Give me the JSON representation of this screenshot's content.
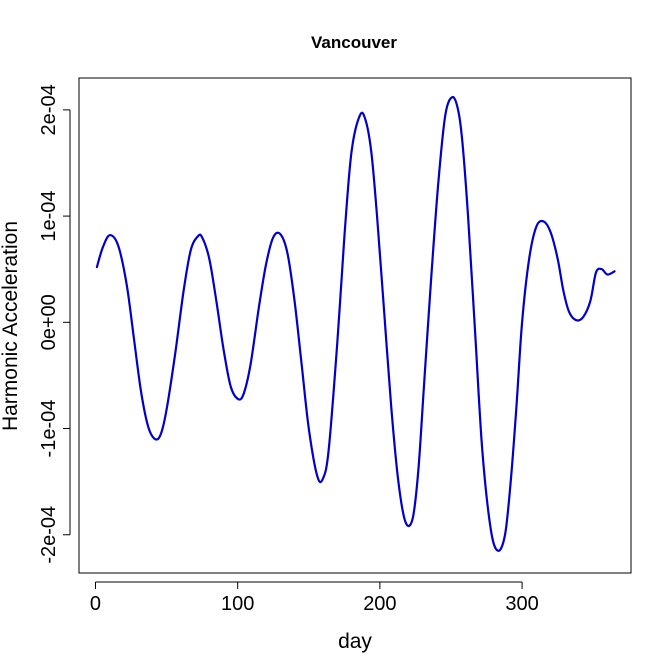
{
  "chart_data": {
    "type": "line",
    "title": "Vancouver",
    "xlabel": "day",
    "ylabel": "Harmonic Acceleration",
    "xlim": [
      -11.6,
      376.6
    ],
    "ylim": [
      -0.000236,
      0.00023
    ],
    "x_ticks": [
      {
        "value": 0,
        "label": "0"
      },
      {
        "value": 100,
        "label": "100"
      },
      {
        "value": 200,
        "label": "200"
      },
      {
        "value": 300,
        "label": "300"
      }
    ],
    "y_ticks": [
      {
        "value": -0.0002,
        "label": "-2e-04"
      },
      {
        "value": -0.0001,
        "label": "-1e-04"
      },
      {
        "value": 0,
        "label": "0e+00"
      },
      {
        "value": 0.0001,
        "label": "1e-04"
      },
      {
        "value": 0.0002,
        "label": "2e-04"
      }
    ],
    "grid": false,
    "line_color": "#0000cc",
    "series": [
      {
        "x": [
          1,
          5,
          10,
          16,
          22,
          27,
          32,
          37,
          42,
          46,
          50,
          56,
          62,
          67,
          72,
          75,
          80,
          85,
          90,
          95,
          100,
          104,
          109,
          115,
          120,
          125,
          130,
          135,
          140,
          145,
          150,
          156,
          160,
          164,
          170,
          175,
          180,
          186,
          190,
          194,
          198,
          203,
          208,
          213,
          218,
          223,
          227,
          231,
          236,
          241,
          246,
          251,
          255,
          258,
          262,
          267,
          272,
          278,
          283,
          288,
          292,
          296,
          300,
          305,
          310,
          315,
          320,
          325,
          329,
          333,
          338,
          343,
          348,
          352,
          356,
          360,
          365
        ],
        "y": [
          5.2e-05,
          7e-05,
          8.2e-05,
          7.2e-05,
          3.5e-05,
          -1.5e-05,
          -6.5e-05,
          -9.8e-05,
          -0.00011,
          -0.000105,
          -8.2e-05,
          -3e-05,
          3e-05,
          6.8e-05,
          8.1e-05,
          8e-05,
          6e-05,
          2e-05,
          -2.5e-05,
          -6e-05,
          -7.2e-05,
          -6.8e-05,
          -4e-05,
          1.5e-05,
          5.5e-05,
          8e-05,
          8.3e-05,
          6.5e-05,
          2e-05,
          -4e-05,
          -0.0001,
          -0.000145,
          -0.000147,
          -0.00012,
          -2e-05,
          8e-05,
          0.00016,
          0.000195,
          0.00019,
          0.00016,
          0.0001,
          1e-05,
          -8e-05,
          -0.00015,
          -0.000188,
          -0.000185,
          -0.00014,
          -6e-05,
          4e-05,
          0.00013,
          0.000195,
          0.000212,
          0.0002,
          0.00017,
          0.0001,
          -1e-05,
          -0.00012,
          -0.000195,
          -0.000215,
          -0.0002,
          -0.00015,
          -8e-05,
          0.0,
          6e-05,
          9e-05,
          9.5e-05,
          8.5e-05,
          6e-05,
          3e-05,
          1e-05,
          2e-06,
          5e-06,
          2e-05,
          4.7e-05,
          5e-05,
          4.5e-05,
          4.8e-05
        ]
      }
    ]
  }
}
